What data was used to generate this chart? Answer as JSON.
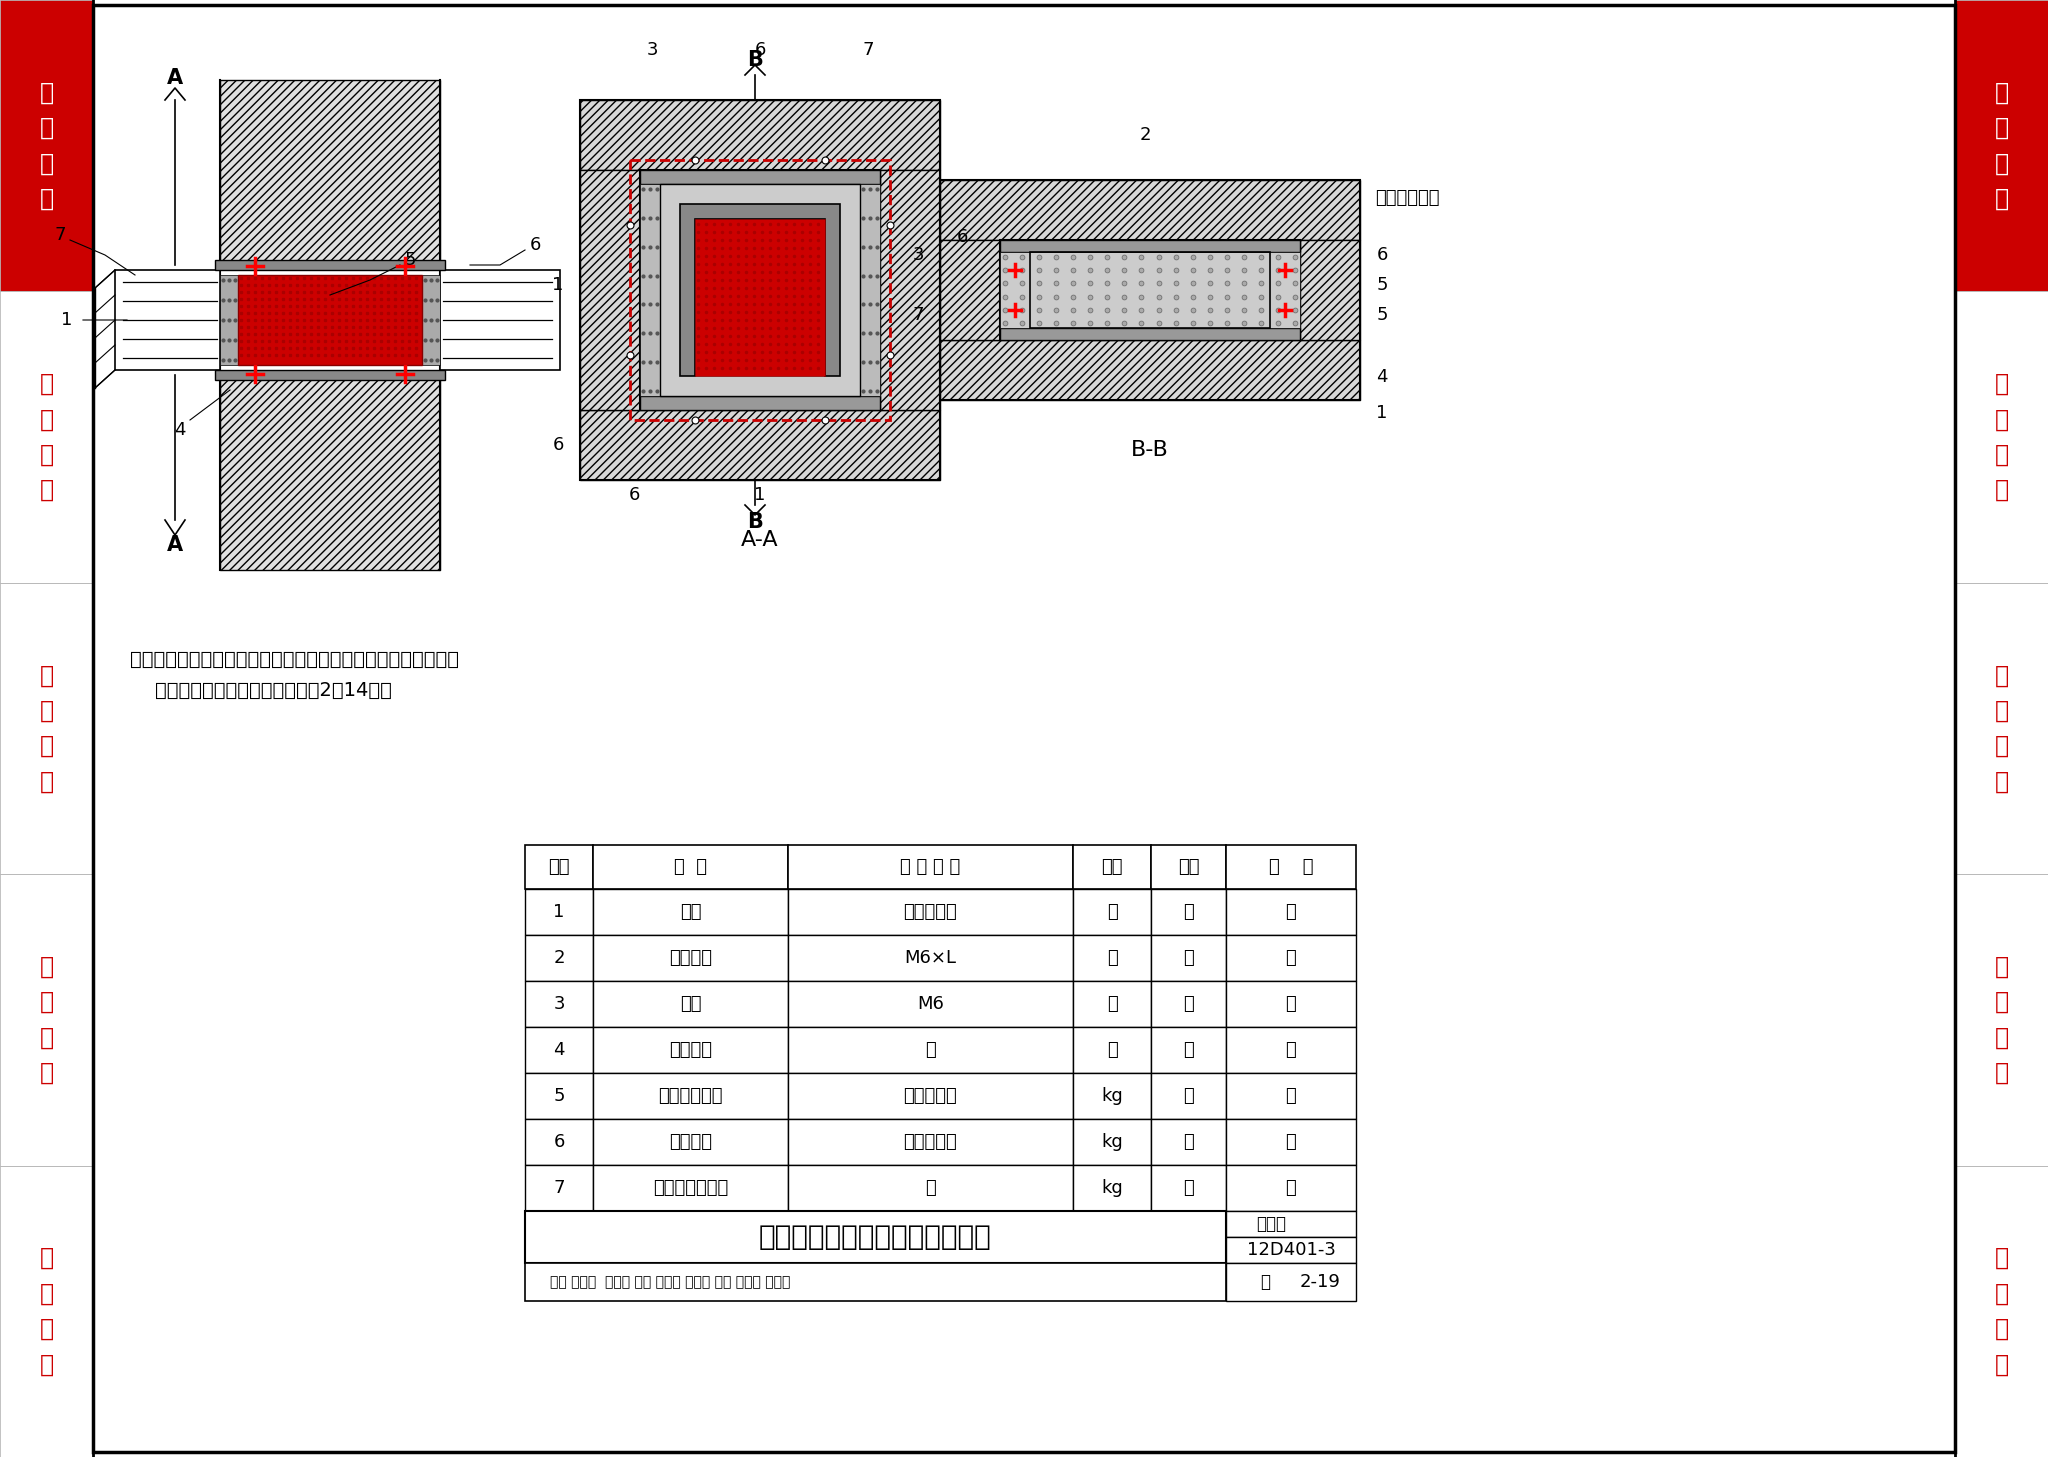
{
  "title": "电缆梯架穿墙柔性有机堵料封堵",
  "figure_number": "12D401-3",
  "page": "2-19",
  "page_label": "页",
  "atlas_label": "图集号",
  "bg_color": "#FFFFFF",
  "sidebar_color": "#CC0000",
  "sidebar_text_red": "#CC0000",
  "sidebar_sections": [
    "隔\n离\n密\n封",
    "动\n力\n设\n备",
    "照\n明\n灯\n具",
    "弱\n电\n设\n备",
    "技\n术\n资\n料"
  ],
  "table_headers": [
    "编号",
    "名  称",
    "型 号 规 格",
    "单位",
    "数量",
    "备    注"
  ],
  "table_rows": [
    [
      "1",
      "电缆",
      "见工程设计",
      "－",
      "－",
      "－"
    ],
    [
      "2",
      "预埋螺栓",
      "M6×L",
      "个",
      "－",
      "－"
    ],
    [
      "3",
      "螺母",
      "M6",
      "个",
      "－",
      "－"
    ],
    [
      "4",
      "不燃纤维",
      "－",
      "个",
      "－",
      "－"
    ],
    [
      "5",
      "柔性有机堵料",
      "见工程设计",
      "kg",
      "－",
      "－"
    ],
    [
      "6",
      "耐火隔板",
      "见工程设计",
      "kg",
      "－",
      "－"
    ],
    [
      "7",
      "电缆梯架或托盘",
      "－",
      "kg",
      "－",
      "－"
    ]
  ],
  "note_text": "注：当密封要求较高或操作较复杂时，不燃纤维及柔性有机堵料\n    可用速固型密封剂代替，参见第2－14页。",
  "aa_label": "A-A",
  "bb_label": "B-B",
  "concrete_label": "混凝土或砖墙"
}
